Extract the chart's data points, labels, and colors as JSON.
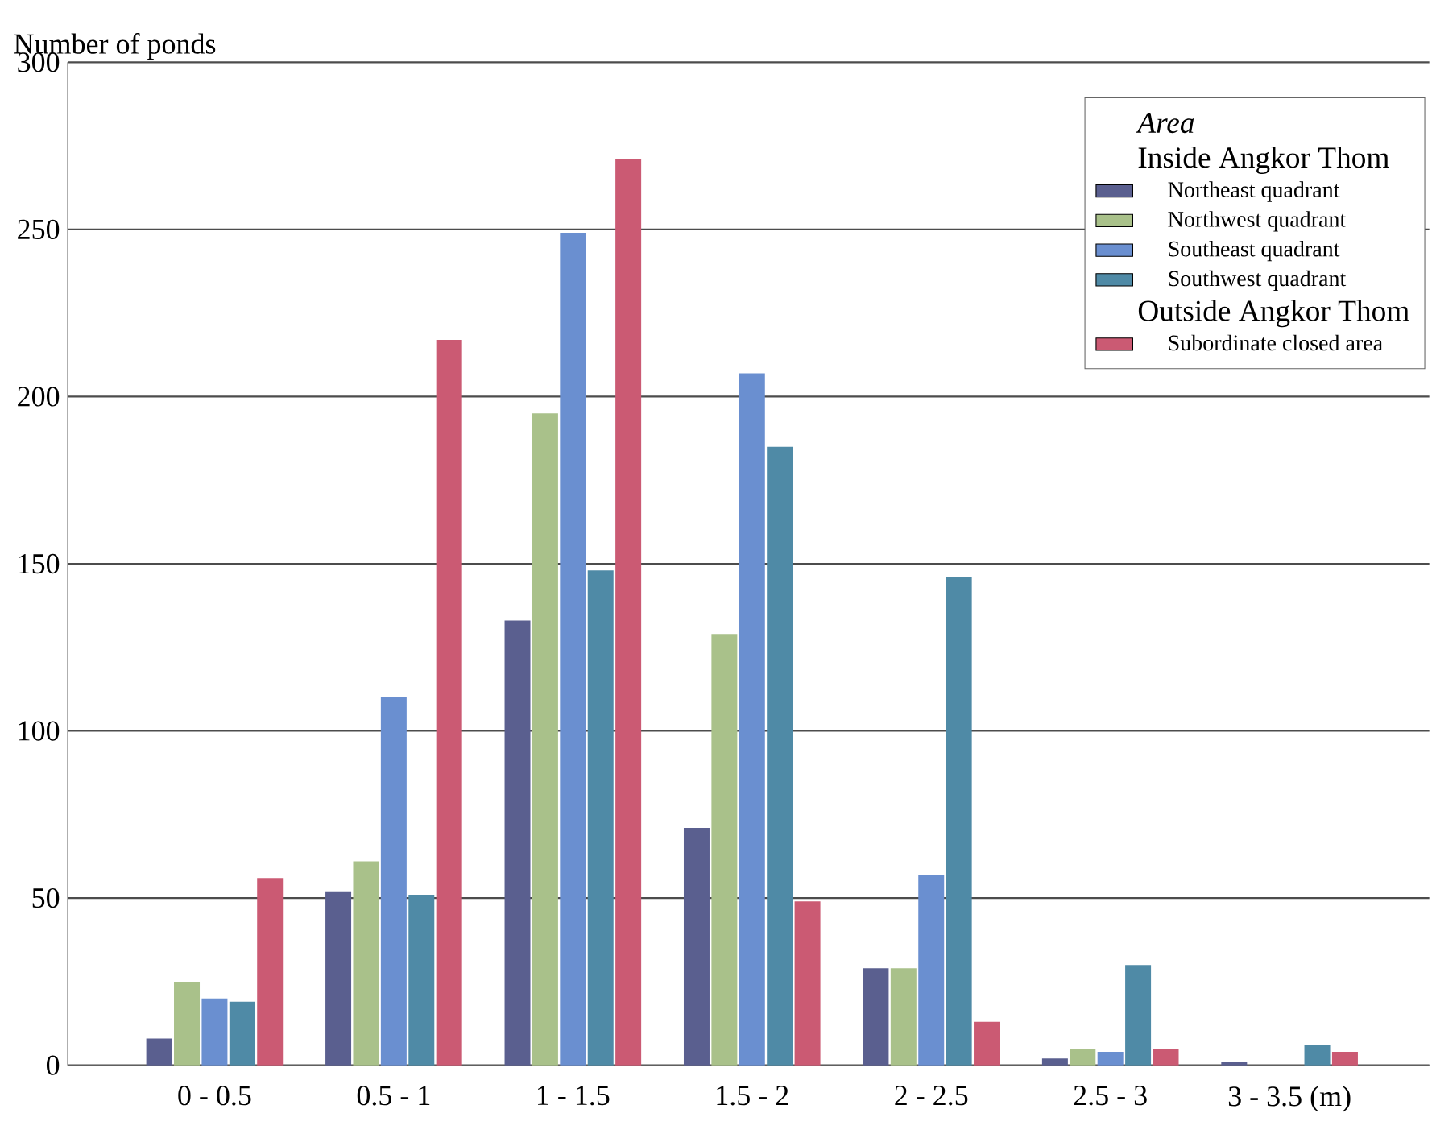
{
  "chart_data": {
    "type": "bar",
    "ylabel": "Number of ponds",
    "legend_title": "Area",
    "categories": [
      "0 - 0.5",
      "0.5 - 1",
      "1 - 1.5",
      "1.5 - 2",
      "2 - 2.5",
      "2.5 - 3",
      "3 - 3.5 (m)"
    ],
    "series": [
      {
        "name": "Northeast quadrant",
        "color": "#5a5f8f",
        "values": [
          8,
          52,
          133,
          71,
          29,
          2,
          1
        ]
      },
      {
        "name": "Northwest quadrant",
        "color": "#a9c18a",
        "values": [
          25,
          61,
          195,
          129,
          29,
          5,
          0
        ]
      },
      {
        "name": "Southeast quadrant",
        "color": "#6a8fd0",
        "values": [
          20,
          110,
          249,
          207,
          57,
          4,
          0
        ]
      },
      {
        "name": "Southwest quadrant",
        "color": "#4f8aa6",
        "values": [
          19,
          51,
          148,
          185,
          146,
          30,
          6
        ]
      },
      {
        "name": "Subordinate closed area",
        "color": "#cb5a73",
        "values": [
          56,
          217,
          271,
          49,
          13,
          5,
          4
        ]
      }
    ],
    "annotations": [
      "Inside Angkor Thom",
      "Outside Angkor Thom"
    ],
    "ylim": [
      0,
      300
    ],
    "yticks": [
      0,
      50,
      100,
      150,
      200,
      250,
      300
    ],
    "grid": "y",
    "legend": "top right"
  }
}
